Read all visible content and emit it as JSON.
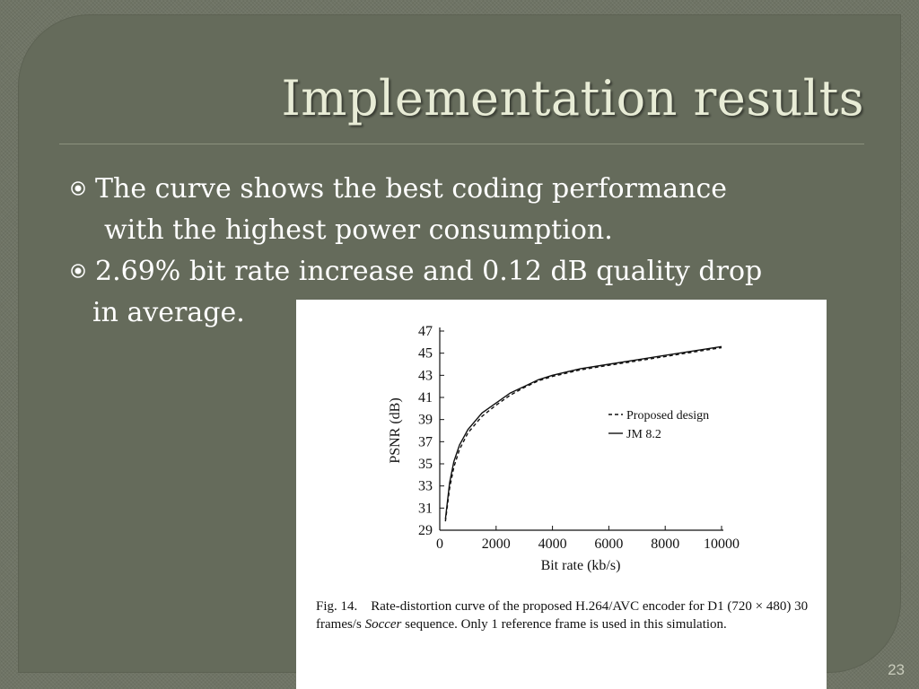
{
  "slide": {
    "title": "Implementation results",
    "bullets": [
      {
        "line1": "The curve shows the best coding performance",
        "line2": "with the highest power consumption."
      },
      {
        "line1": "2.69% bit rate increase and 0.12 dB quality drop",
        "line2": "in average."
      }
    ],
    "page_number": "23"
  },
  "figure": {
    "caption_prefix": "Fig. 14. Rate-distortion curve of the proposed H.264/AVC encoder for D1 (720 × 480) 30 frames/s ",
    "caption_italic": "Soccer",
    "caption_suffix": " sequence. Only 1 reference frame is used in this simulation."
  },
  "chart_data": {
    "type": "line",
    "xlabel": "Bit rate (kb/s)",
    "ylabel": "PSNR (dB)",
    "xlim": [
      0,
      10000
    ],
    "ylim": [
      29,
      47
    ],
    "xticks": [
      0,
      2000,
      4000,
      6000,
      8000,
      10000
    ],
    "yticks": [
      29,
      31,
      33,
      35,
      37,
      39,
      41,
      43,
      45,
      47
    ],
    "grid": false,
    "legend_position": "right",
    "series": [
      {
        "name": "Proposed design",
        "style": "dashed",
        "x": [
          200,
          350,
          500,
          700,
          1000,
          1500,
          2000,
          2500,
          3000,
          3500,
          4000,
          5000,
          6000,
          7000,
          8000,
          9000,
          10000
        ],
        "y": [
          29.8,
          32.8,
          34.7,
          36.3,
          37.8,
          39.3,
          40.3,
          41.2,
          41.9,
          42.5,
          42.9,
          43.5,
          43.9,
          44.3,
          44.7,
          45.1,
          45.5
        ]
      },
      {
        "name": "JM 8.2",
        "style": "solid",
        "x": [
          200,
          350,
          500,
          700,
          1000,
          1500,
          2000,
          2500,
          3000,
          3500,
          4000,
          5000,
          6000,
          7000,
          8000,
          9000,
          10000
        ],
        "y": [
          30.0,
          33.3,
          35.2,
          36.7,
          38.1,
          39.6,
          40.5,
          41.4,
          42.0,
          42.6,
          43.0,
          43.6,
          44.0,
          44.4,
          44.8,
          45.2,
          45.6
        ]
      }
    ]
  }
}
